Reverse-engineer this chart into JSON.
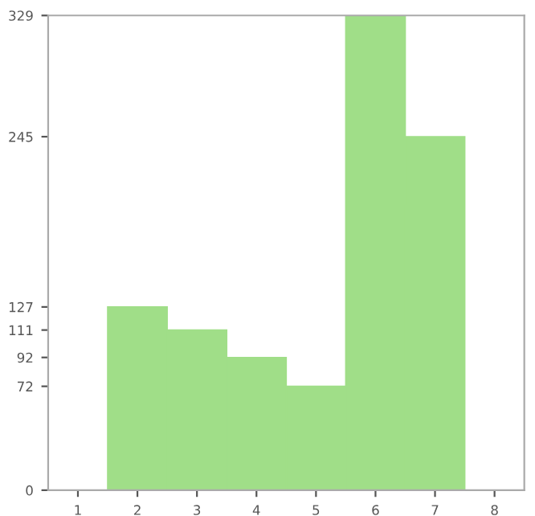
{
  "chart_data": {
    "type": "bar",
    "categories": [
      "1",
      "2",
      "3",
      "4",
      "5",
      "6",
      "7",
      "8"
    ],
    "values": [
      0,
      127,
      111,
      92,
      72,
      329,
      245,
      0
    ],
    "color": "#a0de88",
    "ylim": [
      0,
      329
    ],
    "yticks": [
      0,
      72,
      92,
      111,
      127,
      245,
      329
    ],
    "grid": false
  }
}
